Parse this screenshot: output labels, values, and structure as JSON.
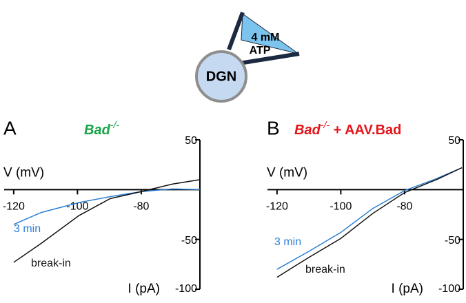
{
  "diagram": {
    "cell": "DGN",
    "pipette": [
      "4 mM",
      "ATP"
    ]
  },
  "chart_data": [
    {
      "type": "line",
      "panel": "A",
      "title": {
        "text": "Bad",
        "superscript": "-/-",
        "color": "#1aa34a"
      },
      "xlabel": "V (mV)",
      "ylabel": "I (pA)",
      "xlim": [
        -123,
        -61.6
      ],
      "ylim": [
        -100,
        50
      ],
      "xticks": [
        -120,
        -100,
        -80
      ],
      "yticks": [
        50,
        -50,
        -100
      ],
      "x": [
        -120,
        -111.4,
        -99.5,
        -89.7,
        -80,
        -70.3,
        -61.6
      ],
      "series": [
        {
          "name": "3 min",
          "color": "#2a7fd4",
          "values": [
            -35,
            -23,
            -13,
            -7,
            -2,
            0.7,
            0
          ]
        },
        {
          "name": "break-in",
          "color": "#111111",
          "values": [
            -73,
            -54,
            -26,
            -9,
            -2,
            5.5,
            10
          ]
        }
      ]
    },
    {
      "type": "line",
      "panel": "B",
      "title": {
        "text": "Bad",
        "superscript": "-/-",
        "suffix": " + AAV.Bad",
        "color": "#e3151a"
      },
      "xlabel": "V (mV)",
      "ylabel": "I (pA)",
      "xlim": [
        -123,
        -61.6
      ],
      "ylim": [
        -100,
        50
      ],
      "xticks": [
        -120,
        -100,
        -80
      ],
      "yticks": [
        50,
        -50,
        -100
      ],
      "x": [
        -120,
        -110,
        -100,
        -90,
        -80,
        -70,
        -62
      ],
      "series": [
        {
          "name": "3 min",
          "color": "#2a7fd4",
          "values": [
            -80,
            -62,
            -43,
            -19,
            -1,
            11,
            22
          ]
        },
        {
          "name": "break-in",
          "color": "#111111",
          "values": [
            -88,
            -68,
            -49,
            -24,
            -3,
            10,
            22
          ]
        }
      ]
    }
  ]
}
